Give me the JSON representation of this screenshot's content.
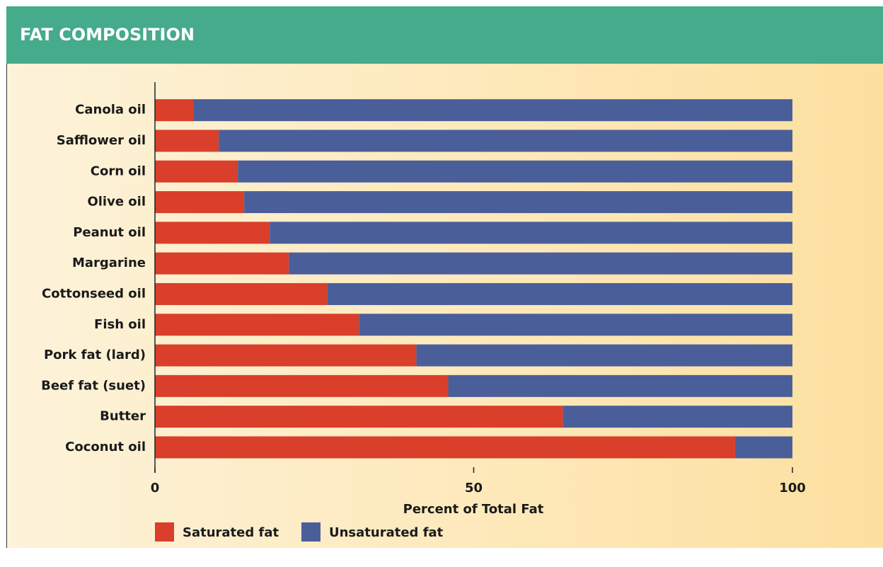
{
  "chart_data": {
    "type": "bar",
    "orientation": "horizontal",
    "stacked": true,
    "title": "FAT COMPOSITION",
    "xlabel": "Percent of Total Fat",
    "categories": [
      "Canola oil",
      "Safflower oil",
      "Corn oil",
      "Olive oil",
      "Peanut oil",
      "Margarine",
      "Cottonseed oil",
      "Fish oil",
      "Pork fat (lard)",
      "Beef fat (suet)",
      "Butter",
      "Coconut oil"
    ],
    "series": [
      {
        "name": "Saturated fat",
        "color": "#d93f2a",
        "values": [
          6,
          10,
          13,
          14,
          18,
          21,
          27,
          32,
          41,
          46,
          64,
          91
        ]
      },
      {
        "name": "Unsaturated fat",
        "color": "#4a5f9a",
        "values": [
          94,
          90,
          87,
          86,
          82,
          79,
          73,
          68,
          59,
          54,
          36,
          9
        ]
      }
    ],
    "xlim": [
      0,
      100
    ],
    "xticks": [
      0,
      50,
      100
    ],
    "legend": "bottom-left"
  }
}
